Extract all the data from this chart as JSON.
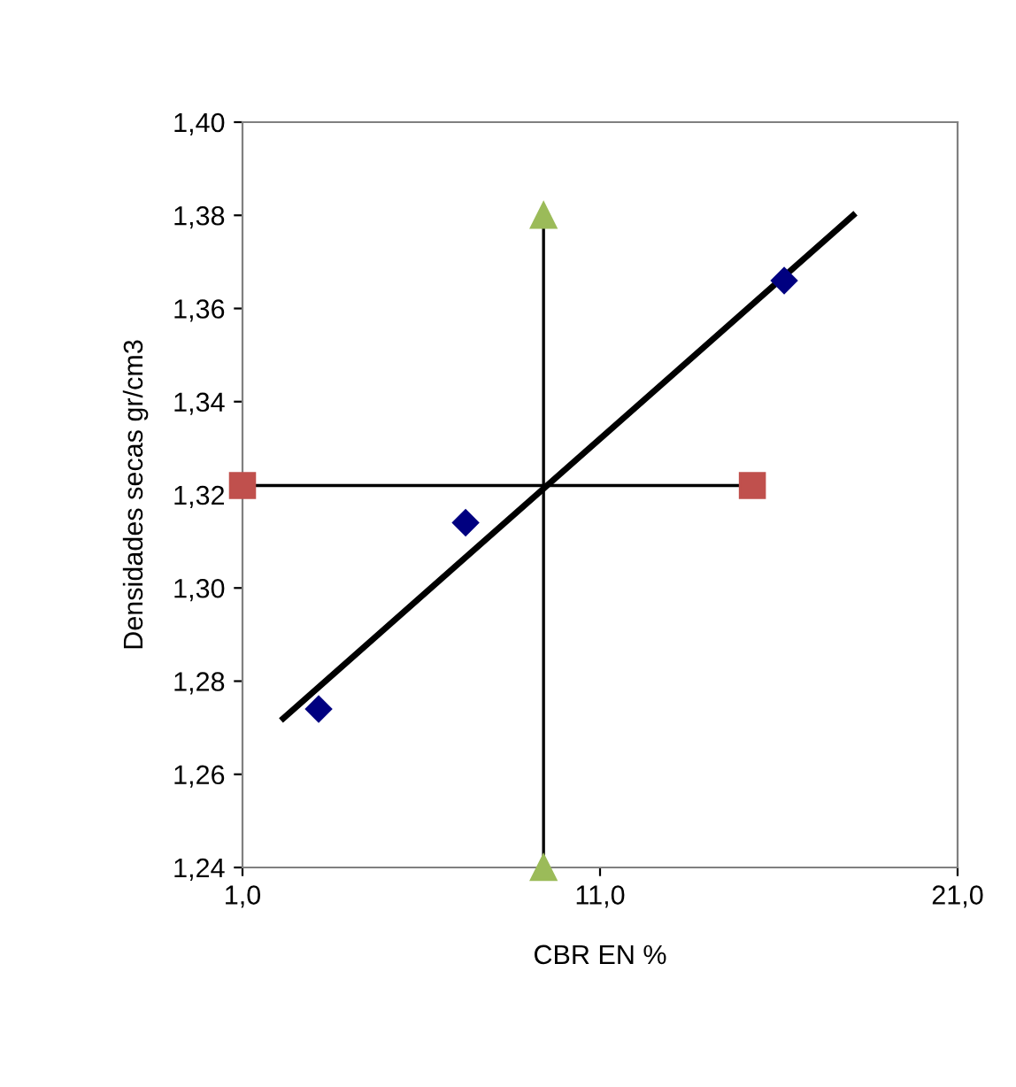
{
  "chart_data": {
    "type": "scatter",
    "xlabel": "CBR EN %",
    "ylabel": "Densidades secas gr/cm3",
    "xlim": [
      1,
      21
    ],
    "xticks": [
      {
        "value": 1,
        "label": "1,0"
      },
      {
        "value": 11,
        "label": "11,0"
      },
      {
        "value": 21,
        "label": "21,0"
      }
    ],
    "ylim": [
      1.24,
      1.4
    ],
    "yticks": [
      {
        "value": 1.24,
        "label": "1,24"
      },
      {
        "value": 1.26,
        "label": "1,26"
      },
      {
        "value": 1.28,
        "label": "1,28"
      },
      {
        "value": 1.3,
        "label": "1,30"
      },
      {
        "value": 1.32,
        "label": "1,32"
      },
      {
        "value": 1.34,
        "label": "1,34"
      },
      {
        "value": 1.36,
        "label": "1,36"
      },
      {
        "value": 1.38,
        "label": "1,38"
      },
      {
        "value": 1.4,
        "label": "1,40"
      }
    ],
    "grid": false,
    "legend": false,
    "series": [
      {
        "marker": "diamond",
        "color": "#000080",
        "x": [
          3.13,
          7.24,
          16.15
        ],
        "values": [
          1.274,
          1.314,
          1.366
        ]
      },
      {
        "type": "line",
        "marker": "none",
        "line_style": "solid",
        "color": "#000000",
        "x": [
          2.14,
          18.08
        ],
        "values": [
          1.272,
          1.38
        ]
      },
      {
        "type": "line",
        "marker": "square",
        "line_style": "solid",
        "color": "#c0504d",
        "x": [
          1,
          15.26
        ],
        "values": [
          1.322,
          1.322
        ]
      },
      {
        "type": "line",
        "marker": "triangle",
        "line_style": "solid",
        "color": "#9bbb59",
        "x": [
          9.42,
          9.42
        ],
        "values": [
          1.24,
          1.38
        ]
      }
    ]
  }
}
